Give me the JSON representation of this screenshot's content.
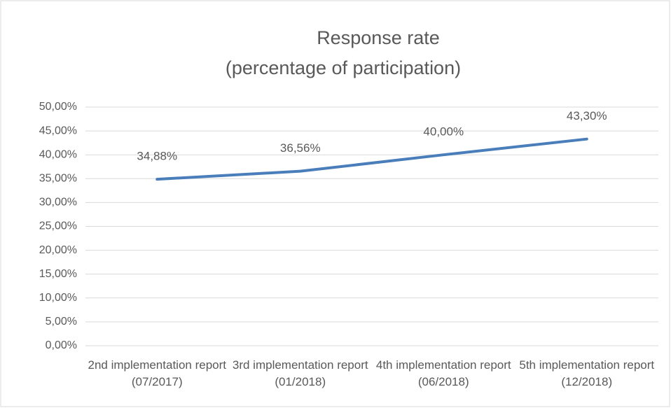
{
  "chart_data": {
    "type": "line",
    "title": "Response rate",
    "subtitle": "(percentage of participation)",
    "categories": [
      "2nd implementation report (07/2017)",
      "3rd implementation report (01/2018)",
      "4th implementation report (06/2018)",
      "5th implementation report (12/2018)"
    ],
    "series": [
      {
        "name": "Response rate",
        "color": "#4a7ebb",
        "values": [
          34.88,
          36.56,
          40,
          43.3
        ],
        "value_labels": [
          "34,88%",
          "36,56%",
          "40,00%",
          "43,30%"
        ]
      }
    ],
    "ylim": [
      0,
      50
    ],
    "yticks": [
      {
        "value": 0,
        "label": "0,00%"
      },
      {
        "value": 5,
        "label": "5,00%"
      },
      {
        "value": 10,
        "label": "10,00%"
      },
      {
        "value": 15,
        "label": "15,00%"
      },
      {
        "value": 20,
        "label": "20,00%"
      },
      {
        "value": 25,
        "label": "25,00%"
      },
      {
        "value": 30,
        "label": "30,00%"
      },
      {
        "value": 35,
        "label": "35,00%"
      },
      {
        "value": 40,
        "label": "40,00%"
      },
      {
        "value": 45,
        "label": "45,00%"
      },
      {
        "value": 50,
        "label": "50,00%"
      }
    ],
    "grid": true
  }
}
